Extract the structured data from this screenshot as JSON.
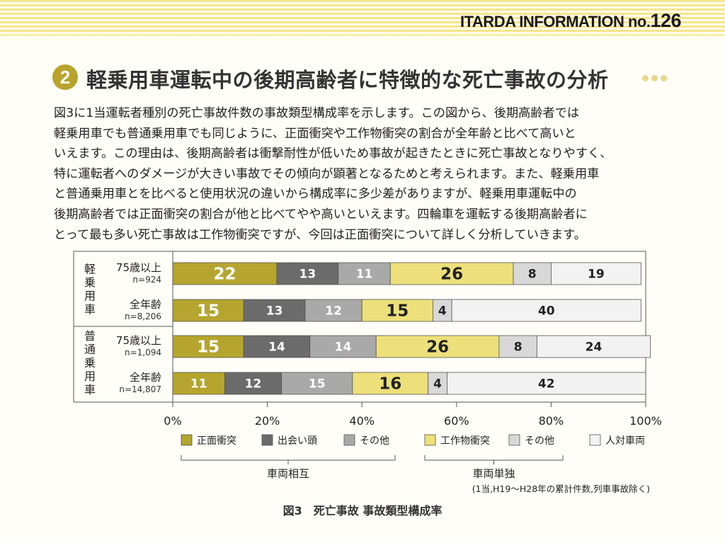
{
  "header": {
    "title_prefix": "ITARDA INFORMATION no.",
    "title_number": "126"
  },
  "section": {
    "number": "2",
    "title": "軽乗用車運転中の後期高齢者に特徴的な死亡事故の分析"
  },
  "body_lines": [
    "図3に1当運転者種別の死亡事故件数の事故類型構成率を示します。この図から、後期高齢者では",
    "軽乗用車でも普通乗用車でも同じように、正面衝突や工作物衝突の割合が全年齢と比べて高いと",
    "いえます。この理由は、後期高齢者は衝撃耐性が低いため事故が起きたときに死亡事故となりやすく、",
    "特に運転者へのダメージが大きい事故でその傾向が顕著となるためと考えられます。また、軽乗用車",
    "と普通乗用車とを比べると使用状況の違いから構成率に多少差がありますが、軽乗用車運転中の",
    "後期高齢者では正面衝突の割合が他と比べてやや高いといえます。四輪車を運転する後期高齢者に",
    "とって最も多い死亡事故は工作物衝突ですが、今回は正面衝突について詳しく分析していきます。"
  ],
  "chart_data": {
    "type": "bar",
    "orientation": "horizontal",
    "stacked": true,
    "xlim": [
      0,
      100
    ],
    "x_ticks": [
      "0%",
      "20%",
      "40%",
      "60%",
      "80%",
      "100%"
    ],
    "groups": [
      {
        "label": "軽乗用車",
        "rows": [
          0,
          1
        ]
      },
      {
        "label": "普通乗用車",
        "rows": [
          2,
          3
        ]
      }
    ],
    "rows": [
      {
        "label": "75歳以上",
        "n": "n=924",
        "values": [
          22,
          13,
          11,
          26,
          8,
          19
        ]
      },
      {
        "label": "全年齢",
        "n": "n=8,206",
        "values": [
          15,
          13,
          12,
          15,
          4,
          40
        ]
      },
      {
        "label": "75歳以上",
        "n": "n=1,094",
        "values": [
          15,
          14,
          14,
          26,
          8,
          24
        ]
      },
      {
        "label": "全年齢",
        "n": "n=14,807",
        "values": [
          11,
          12,
          15,
          16,
          4,
          42
        ]
      }
    ],
    "series": [
      {
        "name": "正面衝突",
        "color": "#b5a52e",
        "text_color": "#ffffff",
        "emphasis": true
      },
      {
        "name": "出会い頭",
        "color": "#6b6b6b",
        "text_color": "#ffffff",
        "emphasis": false
      },
      {
        "name": "その他",
        "color": "#a9a9a9",
        "text_color": "#ffffff",
        "emphasis": false
      },
      {
        "name": "工作物衝突",
        "color": "#ede07a",
        "text_color": "#222222",
        "emphasis": true
      },
      {
        "name": "その他",
        "color": "#d8d8d8",
        "text_color": "#222222",
        "emphasis": false
      },
      {
        "name": "人対車両",
        "color": "#f2f2f2",
        "text_color": "#222222",
        "emphasis": false
      }
    ],
    "legend_groups": [
      {
        "label": "車両相互",
        "series": [
          0,
          1,
          2
        ]
      },
      {
        "label": "車両単独",
        "series": [
          3,
          4
        ]
      }
    ],
    "note": "(1当,H19～H28年の累計件数,列車事故除く)",
    "caption": "図3　死亡事故 事故類型構成率"
  }
}
